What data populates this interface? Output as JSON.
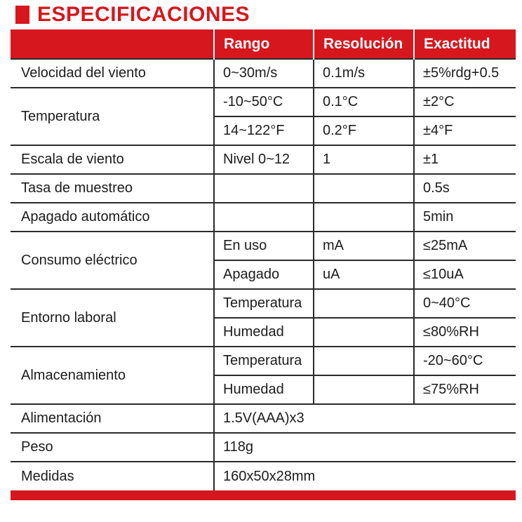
{
  "title": "ESPECIFICACIONES",
  "colors": {
    "accent_red": "#d6181e",
    "text": "#1c1c1c",
    "grid_line": "#2a2a2a",
    "header_text": "#ffffff"
  },
  "table": {
    "headers": [
      "",
      "Rango",
      "Resolución",
      "Exactitud"
    ],
    "groups": [
      {
        "label": "Velocidad del viento",
        "rows": [
          [
            "0~30m/s",
            "0.1m/s",
            "±5%rdg+0.5"
          ]
        ]
      },
      {
        "label": "Temperatura",
        "rows": [
          [
            "-10~50°C",
            "0.1°C",
            "±2°C"
          ],
          [
            "14~122°F",
            "0.2°F",
            "±4°F"
          ]
        ]
      },
      {
        "label": "Escala de viento",
        "rows": [
          [
            "Nivel 0~12",
            "1",
            "±1"
          ]
        ]
      },
      {
        "label": "Tasa de muestreo",
        "rows": [
          [
            "",
            "",
            "0.5s"
          ]
        ]
      },
      {
        "label": "Apagado automático",
        "rows": [
          [
            "",
            "",
            "5min"
          ]
        ]
      },
      {
        "label": "Consumo eléctrico",
        "rows": [
          [
            "En uso",
            "mA",
            "≤25mA"
          ],
          [
            "Apagado",
            "uA",
            "≤10uA"
          ]
        ]
      },
      {
        "label": "Entorno laboral",
        "rows": [
          [
            "Temperatura",
            "",
            "0~40°C"
          ],
          [
            "Humedad",
            "",
            "≤80%RH"
          ]
        ]
      },
      {
        "label": "Almacenamiento",
        "rows": [
          [
            "Temperatura",
            "",
            "-20~60°C"
          ],
          [
            "Humedad",
            "",
            "≤75%RH"
          ]
        ]
      },
      {
        "label": "Alimentación",
        "rows": [
          [
            "1.5V(AAA)x3"
          ]
        ],
        "span": true
      },
      {
        "label": "Peso",
        "rows": [
          [
            "118g"
          ]
        ],
        "span": true
      },
      {
        "label": "Medidas",
        "rows": [
          [
            "160x50x28mm"
          ]
        ],
        "span": true
      }
    ]
  }
}
